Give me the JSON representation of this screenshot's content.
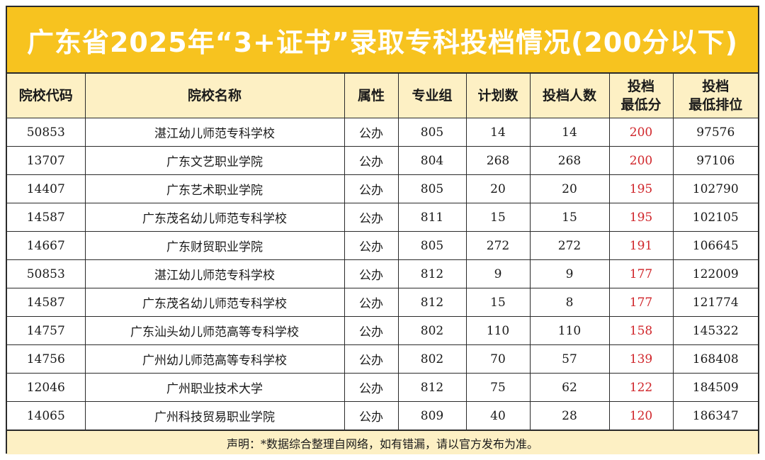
{
  "title": "广东省2025年“3+证书”录取专科投档情况(200分以下)",
  "headers": [
    {
      "line1": "院校代码",
      "line2": ""
    },
    {
      "line1": "院校名称",
      "line2": ""
    },
    {
      "line1": "属性",
      "line2": ""
    },
    {
      "line1": "专业组",
      "line2": ""
    },
    {
      "line1": "计划数",
      "line2": ""
    },
    {
      "line1": "投档人数",
      "line2": ""
    },
    {
      "line1": "投档",
      "line2": "最低分"
    },
    {
      "line1": "投档",
      "line2": "最低排位"
    }
  ],
  "rows": [
    {
      "code": "50853",
      "name": "湛江幼儿师范专科学校",
      "type": "公办",
      "group": "805",
      "plan": "14",
      "admitted": "14",
      "min_score": "200",
      "min_rank": "97576"
    },
    {
      "code": "13707",
      "name": "广东文艺职业学院",
      "type": "公办",
      "group": "804",
      "plan": "268",
      "admitted": "268",
      "min_score": "200",
      "min_rank": "97106"
    },
    {
      "code": "14407",
      "name": "广东艺术职业学院",
      "type": "公办",
      "group": "805",
      "plan": "20",
      "admitted": "20",
      "min_score": "195",
      "min_rank": "102790"
    },
    {
      "code": "14587",
      "name": "广东茂名幼儿师范专科学校",
      "type": "公办",
      "group": "811",
      "plan": "15",
      "admitted": "15",
      "min_score": "195",
      "min_rank": "102105"
    },
    {
      "code": "14667",
      "name": "广东财贸职业学院",
      "type": "公办",
      "group": "805",
      "plan": "272",
      "admitted": "272",
      "min_score": "191",
      "min_rank": "106645"
    },
    {
      "code": "50853",
      "name": "湛江幼儿师范专科学校",
      "type": "公办",
      "group": "812",
      "plan": "9",
      "admitted": "9",
      "min_score": "177",
      "min_rank": "122009"
    },
    {
      "code": "14587",
      "name": "广东茂名幼儿师范专科学校",
      "type": "公办",
      "group": "812",
      "plan": "15",
      "admitted": "8",
      "min_score": "177",
      "min_rank": "121774"
    },
    {
      "code": "14757",
      "name": "广东汕头幼儿师范高等专科学校",
      "type": "公办",
      "group": "802",
      "plan": "110",
      "admitted": "110",
      "min_score": "158",
      "min_rank": "145322"
    },
    {
      "code": "14756",
      "name": "广州幼儿师范高等专科学校",
      "type": "公办",
      "group": "802",
      "plan": "70",
      "admitted": "57",
      "min_score": "139",
      "min_rank": "168408"
    },
    {
      "code": "12046",
      "name": "广州职业技术大学",
      "type": "公办",
      "group": "812",
      "plan": "75",
      "admitted": "62",
      "min_score": "122",
      "min_rank": "184509"
    },
    {
      "code": "14065",
      "name": "广州科技贸易职业学院",
      "type": "公办",
      "group": "809",
      "plan": "40",
      "admitted": "28",
      "min_score": "120",
      "min_rank": "186347"
    }
  ],
  "footer": "声明：*数据综合整理自网络，如有错漏，请以官方发布为准。",
  "colors": {
    "title_bg": "#f7c31f",
    "header_bg": "#fdf0c4",
    "score_text": "#d0262b"
  }
}
